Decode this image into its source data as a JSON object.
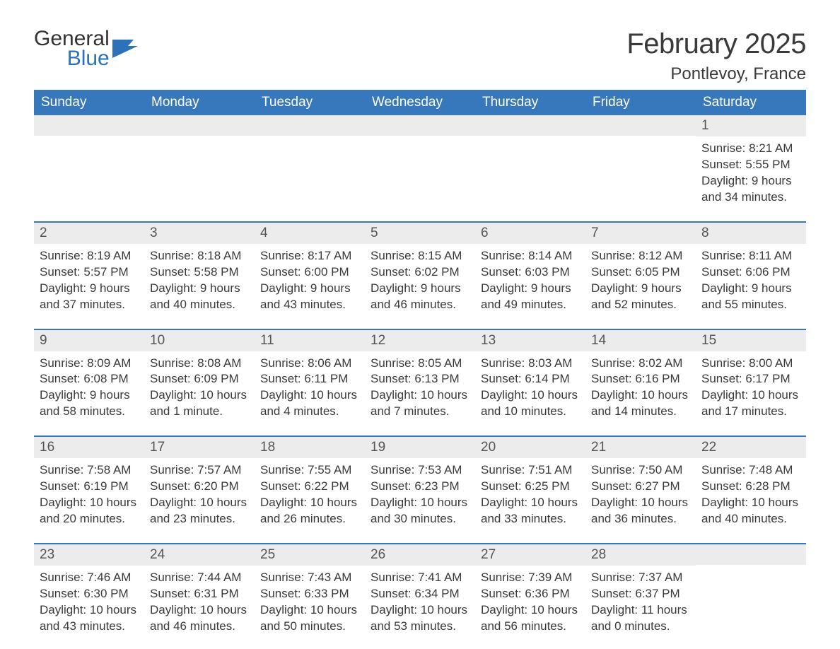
{
  "logo": {
    "text_general": "General",
    "text_blue": "Blue",
    "icon_color": "#2d72b8"
  },
  "header": {
    "month_title": "February 2025",
    "location": "Pontlevoy, France"
  },
  "colors": {
    "header_bg": "#3778bc",
    "header_text": "#ffffff",
    "daynum_bg": "#ececec",
    "border": "#3778bc",
    "body_text": "#3a3a3a"
  },
  "day_headers": [
    "Sunday",
    "Monday",
    "Tuesday",
    "Wednesday",
    "Thursday",
    "Friday",
    "Saturday"
  ],
  "weeks": [
    [
      {
        "day": "",
        "sunrise": "",
        "sunset": "",
        "daylight": ""
      },
      {
        "day": "",
        "sunrise": "",
        "sunset": "",
        "daylight": ""
      },
      {
        "day": "",
        "sunrise": "",
        "sunset": "",
        "daylight": ""
      },
      {
        "day": "",
        "sunrise": "",
        "sunset": "",
        "daylight": ""
      },
      {
        "day": "",
        "sunrise": "",
        "sunset": "",
        "daylight": ""
      },
      {
        "day": "",
        "sunrise": "",
        "sunset": "",
        "daylight": ""
      },
      {
        "day": "1",
        "sunrise": "Sunrise: 8:21 AM",
        "sunset": "Sunset: 5:55 PM",
        "daylight": "Daylight: 9 hours and 34 minutes."
      }
    ],
    [
      {
        "day": "2",
        "sunrise": "Sunrise: 8:19 AM",
        "sunset": "Sunset: 5:57 PM",
        "daylight": "Daylight: 9 hours and 37 minutes."
      },
      {
        "day": "3",
        "sunrise": "Sunrise: 8:18 AM",
        "sunset": "Sunset: 5:58 PM",
        "daylight": "Daylight: 9 hours and 40 minutes."
      },
      {
        "day": "4",
        "sunrise": "Sunrise: 8:17 AM",
        "sunset": "Sunset: 6:00 PM",
        "daylight": "Daylight: 9 hours and 43 minutes."
      },
      {
        "day": "5",
        "sunrise": "Sunrise: 8:15 AM",
        "sunset": "Sunset: 6:02 PM",
        "daylight": "Daylight: 9 hours and 46 minutes."
      },
      {
        "day": "6",
        "sunrise": "Sunrise: 8:14 AM",
        "sunset": "Sunset: 6:03 PM",
        "daylight": "Daylight: 9 hours and 49 minutes."
      },
      {
        "day": "7",
        "sunrise": "Sunrise: 8:12 AM",
        "sunset": "Sunset: 6:05 PM",
        "daylight": "Daylight: 9 hours and 52 minutes."
      },
      {
        "day": "8",
        "sunrise": "Sunrise: 8:11 AM",
        "sunset": "Sunset: 6:06 PM",
        "daylight": "Daylight: 9 hours and 55 minutes."
      }
    ],
    [
      {
        "day": "9",
        "sunrise": "Sunrise: 8:09 AM",
        "sunset": "Sunset: 6:08 PM",
        "daylight": "Daylight: 9 hours and 58 minutes."
      },
      {
        "day": "10",
        "sunrise": "Sunrise: 8:08 AM",
        "sunset": "Sunset: 6:09 PM",
        "daylight": "Daylight: 10 hours and 1 minute."
      },
      {
        "day": "11",
        "sunrise": "Sunrise: 8:06 AM",
        "sunset": "Sunset: 6:11 PM",
        "daylight": "Daylight: 10 hours and 4 minutes."
      },
      {
        "day": "12",
        "sunrise": "Sunrise: 8:05 AM",
        "sunset": "Sunset: 6:13 PM",
        "daylight": "Daylight: 10 hours and 7 minutes."
      },
      {
        "day": "13",
        "sunrise": "Sunrise: 8:03 AM",
        "sunset": "Sunset: 6:14 PM",
        "daylight": "Daylight: 10 hours and 10 minutes."
      },
      {
        "day": "14",
        "sunrise": "Sunrise: 8:02 AM",
        "sunset": "Sunset: 6:16 PM",
        "daylight": "Daylight: 10 hours and 14 minutes."
      },
      {
        "day": "15",
        "sunrise": "Sunrise: 8:00 AM",
        "sunset": "Sunset: 6:17 PM",
        "daylight": "Daylight: 10 hours and 17 minutes."
      }
    ],
    [
      {
        "day": "16",
        "sunrise": "Sunrise: 7:58 AM",
        "sunset": "Sunset: 6:19 PM",
        "daylight": "Daylight: 10 hours and 20 minutes."
      },
      {
        "day": "17",
        "sunrise": "Sunrise: 7:57 AM",
        "sunset": "Sunset: 6:20 PM",
        "daylight": "Daylight: 10 hours and 23 minutes."
      },
      {
        "day": "18",
        "sunrise": "Sunrise: 7:55 AM",
        "sunset": "Sunset: 6:22 PM",
        "daylight": "Daylight: 10 hours and 26 minutes."
      },
      {
        "day": "19",
        "sunrise": "Sunrise: 7:53 AM",
        "sunset": "Sunset: 6:23 PM",
        "daylight": "Daylight: 10 hours and 30 minutes."
      },
      {
        "day": "20",
        "sunrise": "Sunrise: 7:51 AM",
        "sunset": "Sunset: 6:25 PM",
        "daylight": "Daylight: 10 hours and 33 minutes."
      },
      {
        "day": "21",
        "sunrise": "Sunrise: 7:50 AM",
        "sunset": "Sunset: 6:27 PM",
        "daylight": "Daylight: 10 hours and 36 minutes."
      },
      {
        "day": "22",
        "sunrise": "Sunrise: 7:48 AM",
        "sunset": "Sunset: 6:28 PM",
        "daylight": "Daylight: 10 hours and 40 minutes."
      }
    ],
    [
      {
        "day": "23",
        "sunrise": "Sunrise: 7:46 AM",
        "sunset": "Sunset: 6:30 PM",
        "daylight": "Daylight: 10 hours and 43 minutes."
      },
      {
        "day": "24",
        "sunrise": "Sunrise: 7:44 AM",
        "sunset": "Sunset: 6:31 PM",
        "daylight": "Daylight: 10 hours and 46 minutes."
      },
      {
        "day": "25",
        "sunrise": "Sunrise: 7:43 AM",
        "sunset": "Sunset: 6:33 PM",
        "daylight": "Daylight: 10 hours and 50 minutes."
      },
      {
        "day": "26",
        "sunrise": "Sunrise: 7:41 AM",
        "sunset": "Sunset: 6:34 PM",
        "daylight": "Daylight: 10 hours and 53 minutes."
      },
      {
        "day": "27",
        "sunrise": "Sunrise: 7:39 AM",
        "sunset": "Sunset: 6:36 PM",
        "daylight": "Daylight: 10 hours and 56 minutes."
      },
      {
        "day": "28",
        "sunrise": "Sunrise: 7:37 AM",
        "sunset": "Sunset: 6:37 PM",
        "daylight": "Daylight: 11 hours and 0 minutes."
      },
      {
        "day": "",
        "sunrise": "",
        "sunset": "",
        "daylight": ""
      }
    ]
  ]
}
